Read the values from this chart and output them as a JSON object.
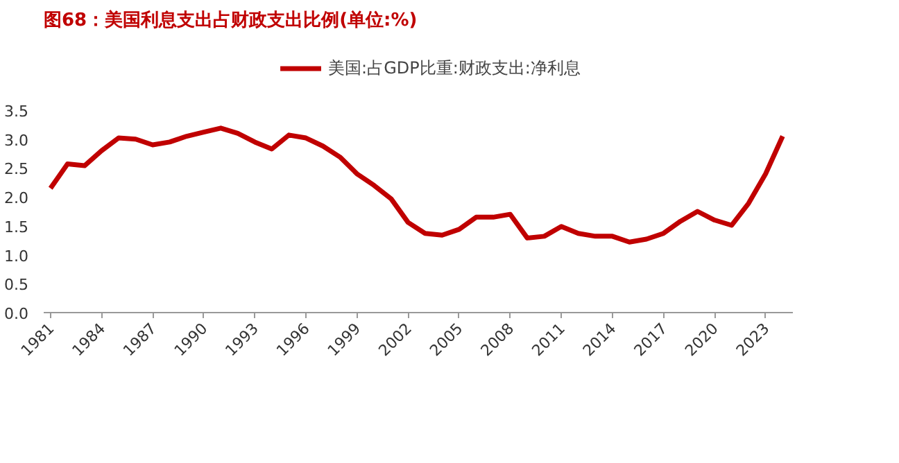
{
  "chart_data": {
    "type": "line",
    "title": "图68：美国利息支出占财政支出比例(单位:%)",
    "x": [
      1981,
      1982,
      1983,
      1984,
      1985,
      1986,
      1987,
      1988,
      1989,
      1990,
      1991,
      1992,
      1993,
      1994,
      1995,
      1996,
      1997,
      1998,
      1999,
      2000,
      2001,
      2002,
      2003,
      2004,
      2005,
      2006,
      2007,
      2008,
      2009,
      2010,
      2011,
      2012,
      2013,
      2014,
      2015,
      2016,
      2017,
      2018,
      2019,
      2020,
      2021,
      2022,
      2023,
      2024
    ],
    "series": [
      {
        "name": "美国:占GDP比重:财政支出:净利息",
        "color": "#c00000",
        "values": [
          2.15,
          2.57,
          2.54,
          2.8,
          3.02,
          3.0,
          2.9,
          2.95,
          3.05,
          3.12,
          3.19,
          3.1,
          2.95,
          2.83,
          3.07,
          3.02,
          2.88,
          2.69,
          2.4,
          2.2,
          1.97,
          1.56,
          1.37,
          1.34,
          1.44,
          1.65,
          1.65,
          1.7,
          1.29,
          1.32,
          1.49,
          1.37,
          1.32,
          1.32,
          1.22,
          1.27,
          1.37,
          1.58,
          1.75,
          1.6,
          1.51,
          1.89,
          2.4,
          3.05
        ]
      }
    ],
    "xlim": [
      1980.6,
      2024.6
    ],
    "xticks": [
      1981,
      1984,
      1987,
      1990,
      1993,
      1996,
      1999,
      2002,
      2005,
      2008,
      2011,
      2014,
      2017,
      2020,
      2023
    ],
    "ylim": [
      0,
      3.5
    ],
    "yticks": [
      {
        "value": 0,
        "label": "0.0"
      },
      {
        "value": 0.5,
        "label": "0.5"
      },
      {
        "value": 1,
        "label": "1.0"
      },
      {
        "value": 1.5,
        "label": "1.5"
      },
      {
        "value": 2,
        "label": "2.0"
      },
      {
        "value": 2.5,
        "label": "2.5"
      },
      {
        "value": 3,
        "label": "3.0"
      },
      {
        "value": 3.5,
        "label": "3.5"
      }
    ],
    "grid": false,
    "legend": "top",
    "marker": "none",
    "line_style": "solid"
  }
}
